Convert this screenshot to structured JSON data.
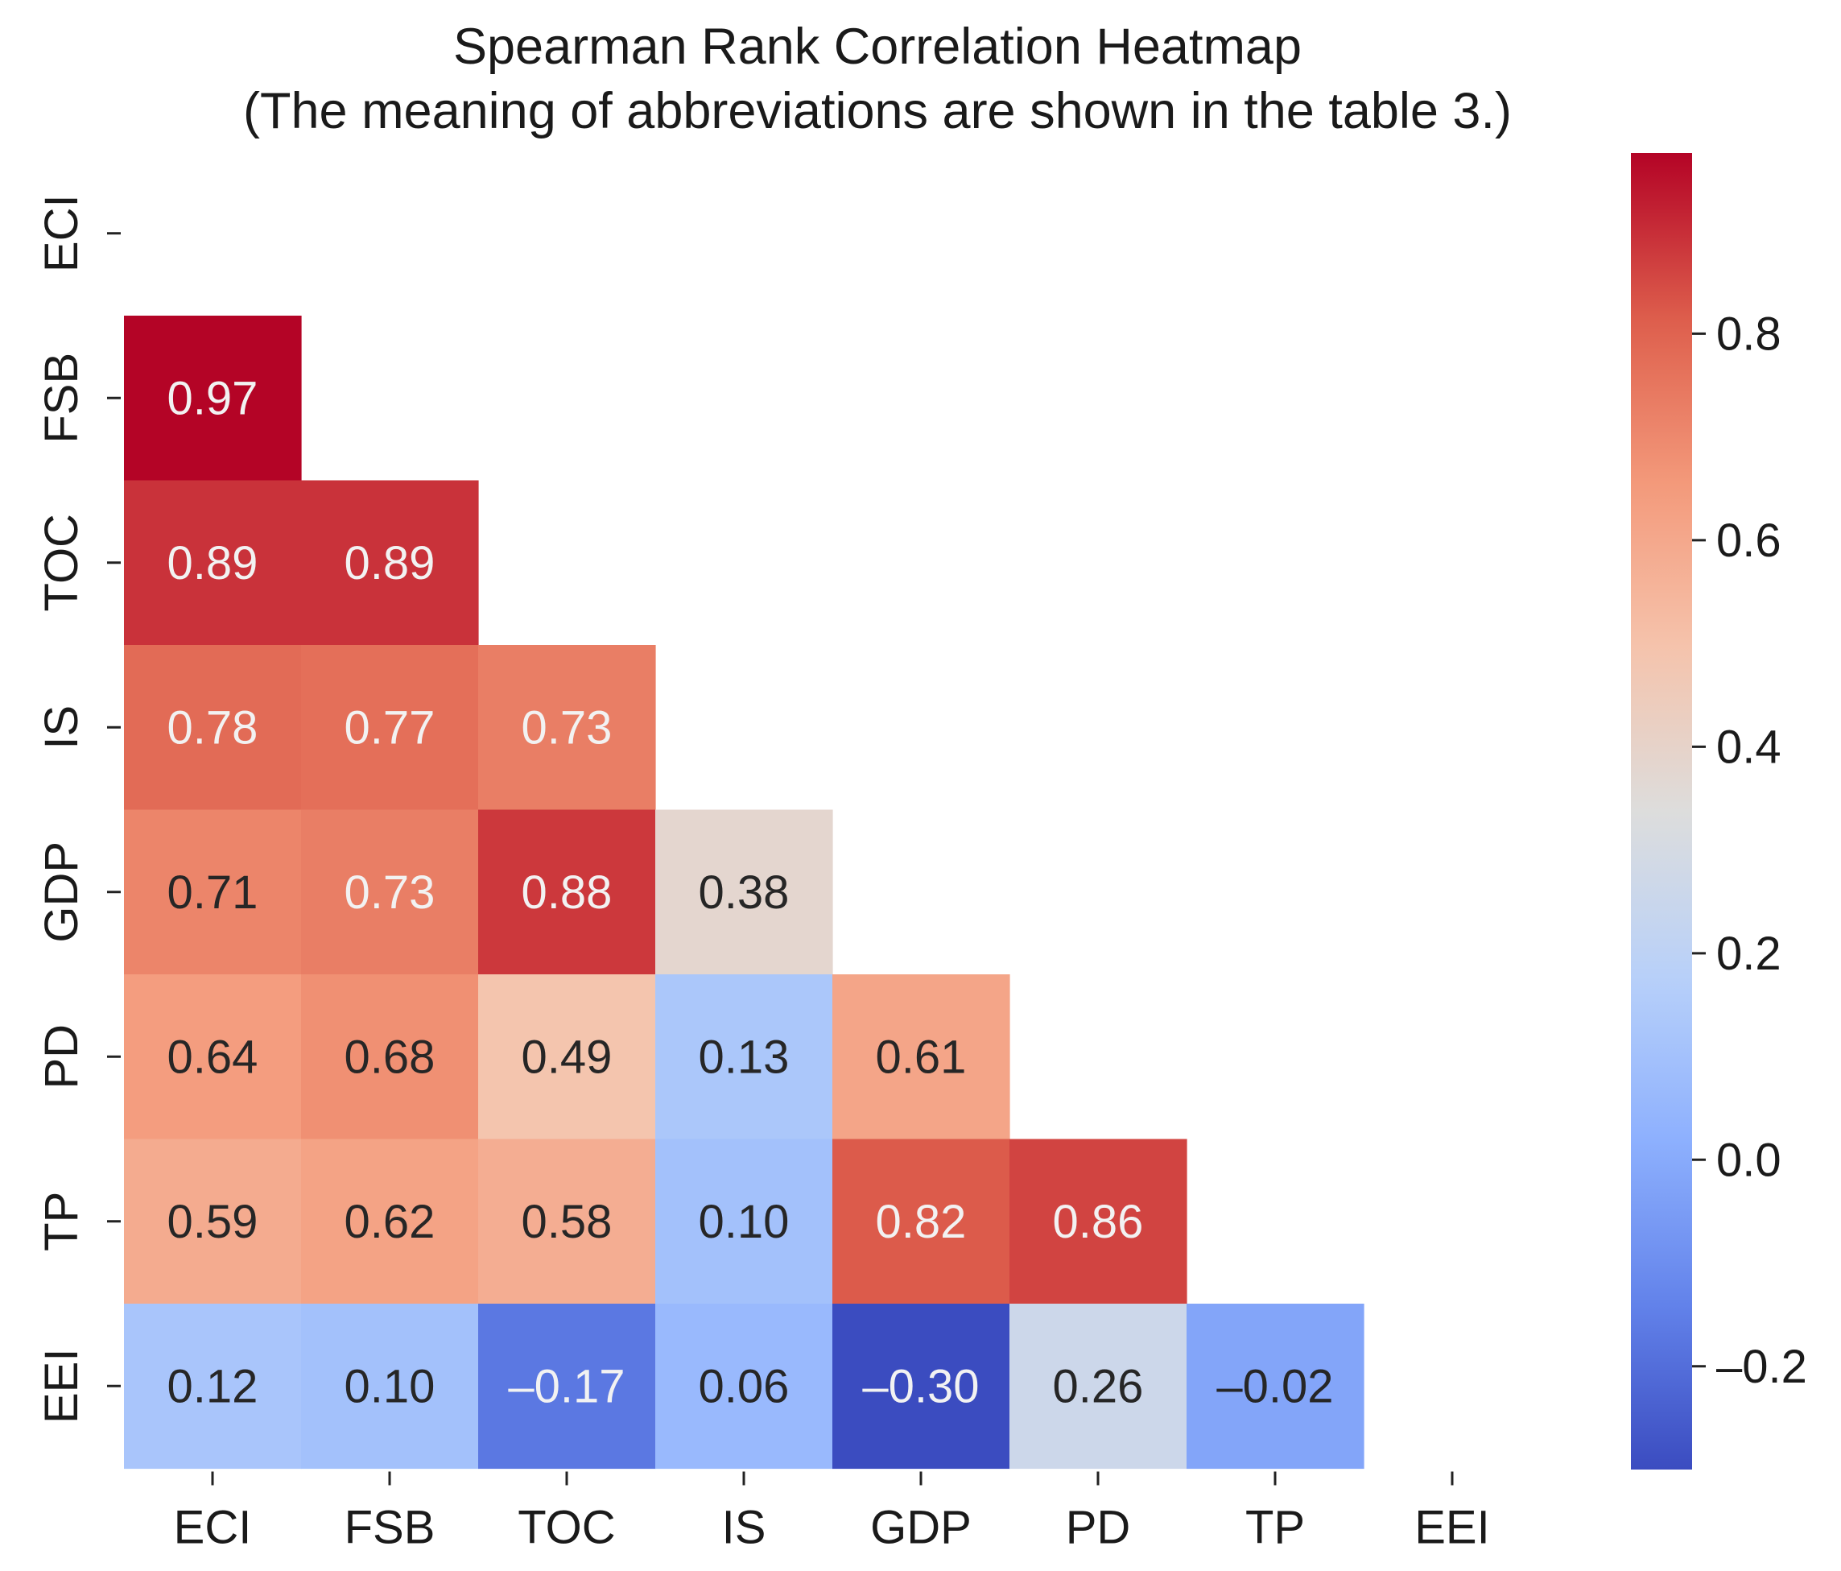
{
  "chart_data": {
    "type": "heatmap",
    "title": "Spearman Rank Correlation Heatmap",
    "subtitle": "(The meaning of abbreviations are shown in the table 3.)",
    "variables": [
      "ECI",
      "FSB",
      "TOC",
      "IS",
      "GDP",
      "PD",
      "TP",
      "EEI"
    ],
    "mask": "upper-triangle-and-diagonal",
    "matrix": [
      [
        null,
        null,
        null,
        null,
        null,
        null,
        null,
        null
      ],
      [
        0.97,
        null,
        null,
        null,
        null,
        null,
        null,
        null
      ],
      [
        0.89,
        0.89,
        null,
        null,
        null,
        null,
        null,
        null
      ],
      [
        0.78,
        0.77,
        0.73,
        null,
        null,
        null,
        null,
        null
      ],
      [
        0.71,
        0.73,
        0.88,
        0.38,
        null,
        null,
        null,
        null
      ],
      [
        0.64,
        0.68,
        0.49,
        0.13,
        0.61,
        null,
        null,
        null
      ],
      [
        0.59,
        0.62,
        0.58,
        0.1,
        0.82,
        0.86,
        null,
        null
      ],
      [
        0.12,
        0.1,
        -0.17,
        0.06,
        -0.3,
        0.26,
        -0.02,
        null
      ]
    ],
    "labels": [
      [
        null,
        null,
        null,
        null,
        null,
        null,
        null,
        null
      ],
      [
        "0.97",
        null,
        null,
        null,
        null,
        null,
        null,
        null
      ],
      [
        "0.89",
        "0.89",
        null,
        null,
        null,
        null,
        null,
        null
      ],
      [
        "0.78",
        "0.77",
        "0.73",
        null,
        null,
        null,
        null,
        null
      ],
      [
        "0.71",
        "0.73",
        "0.88",
        "0.38",
        null,
        null,
        null,
        null
      ],
      [
        "0.64",
        "0.68",
        "0.49",
        "0.13",
        "0.61",
        null,
        null,
        null
      ],
      [
        "0.59",
        "0.62",
        "0.58",
        "0.10",
        "0.82",
        "0.86",
        null,
        null
      ],
      [
        "0.12",
        "0.10",
        "–0.17",
        "0.06",
        "–0.30",
        "0.26",
        "–0.02",
        null
      ]
    ],
    "colormap": "coolwarm",
    "vmin": -0.3,
    "vmax": 0.97,
    "colorbar": {
      "ticks": [
        0.8,
        0.6,
        0.4,
        0.2,
        0.0,
        -0.2
      ],
      "tick_labels": [
        "0.8",
        "0.6",
        "0.4",
        "0.2",
        "0.0",
        "–0.2"
      ],
      "position": "right"
    }
  }
}
